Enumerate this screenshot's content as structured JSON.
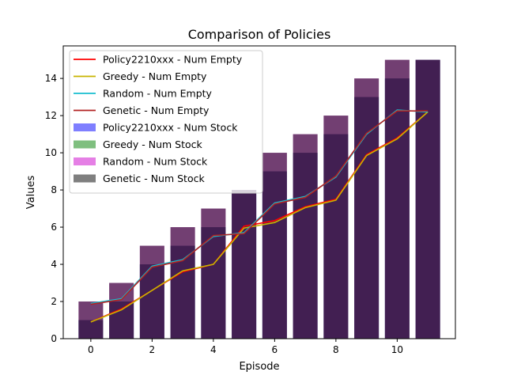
{
  "chart_data": {
    "type": "bar",
    "title": "Comparison of Policies",
    "xlabel": "Episode",
    "ylabel": "Values",
    "xlim": [
      -0.9,
      11.9
    ],
    "ylim": [
      0,
      15.75
    ],
    "xticks": [
      0,
      2,
      4,
      6,
      8,
      10
    ],
    "yticks": [
      0,
      2,
      4,
      6,
      8,
      10,
      12,
      14
    ],
    "grid": false,
    "legend_position": "upper-left",
    "x": [
      0,
      1,
      2,
      3,
      4,
      5,
      6,
      7,
      8,
      9,
      10,
      11
    ],
    "bar_series": [
      {
        "name": "Policy2210xxx - Num Stock",
        "color": "#0000ff",
        "values": [
          1,
          2,
          4,
          5,
          6,
          8,
          9,
          10,
          11,
          13,
          14,
          15
        ]
      },
      {
        "name": "Greedy - Num Stock",
        "color": "#008000",
        "values": [
          1,
          2,
          4,
          5,
          6,
          8,
          9,
          10,
          11,
          13,
          14,
          15
        ]
      },
      {
        "name": "Random - Num Stock",
        "color": "#cc00cc",
        "values": [
          2,
          3,
          5,
          6,
          7,
          8,
          10,
          11,
          12,
          14,
          15,
          15
        ]
      },
      {
        "name": "Genetic - Num Stock",
        "color": "#000000",
        "values": [
          2,
          3,
          5,
          6,
          7,
          8,
          10,
          11,
          12,
          14,
          15,
          15
        ]
      }
    ],
    "line_series": [
      {
        "name": "Policy2210xxx - Num Empty",
        "color": "#ff0000",
        "values": [
          0.9,
          1.6,
          2.6,
          3.6,
          4.0,
          6.05,
          6.35,
          7.1,
          7.5,
          9.9,
          10.8,
          12.2
        ]
      },
      {
        "name": "Greedy - Num Empty",
        "color": "#c8b400",
        "values": [
          0.9,
          1.55,
          2.6,
          3.65,
          4.0,
          5.95,
          6.25,
          7.05,
          7.45,
          9.85,
          10.75,
          12.2
        ]
      },
      {
        "name": "Random - Num Empty",
        "color": "#17becf",
        "values": [
          1.9,
          2.15,
          3.9,
          4.25,
          5.5,
          5.7,
          7.3,
          7.65,
          8.7,
          11.0,
          12.3,
          12.2
        ]
      },
      {
        "name": "Genetic - Num Empty",
        "color": "#b22222",
        "values": [
          1.85,
          2.1,
          3.85,
          4.2,
          5.55,
          5.65,
          7.25,
          7.6,
          8.75,
          11.05,
          12.25,
          12.25
        ]
      }
    ]
  }
}
